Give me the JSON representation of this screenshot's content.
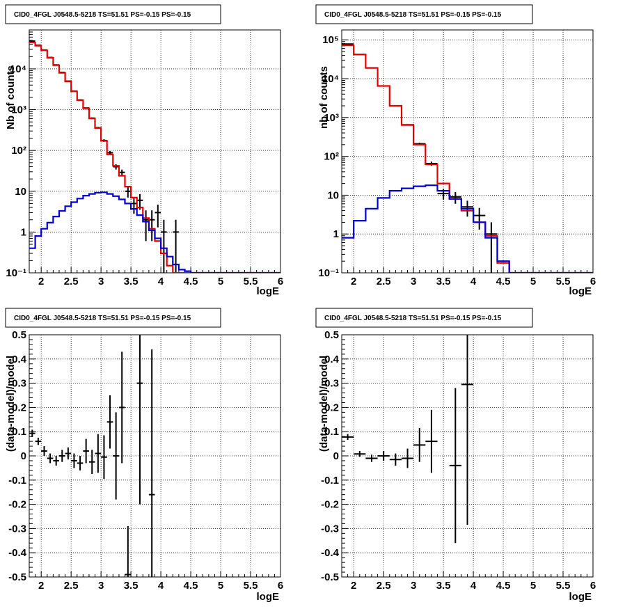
{
  "chart_data": [
    {
      "type": "histogram",
      "title": "CID0_4FGL J0548.5-5218 TS=51.51 PS=-0.15 PS=-0.15",
      "xlabel": "logE",
      "ylabel": "Nb of counts",
      "xlim": [
        1.8,
        6.0
      ],
      "ylim": [
        0.1,
        90000
      ],
      "yscale": "log",
      "grid": true,
      "bin_width": 0.1,
      "x_ticks": [
        "2",
        "2.5",
        "3",
        "3.5",
        "4",
        "4.5",
        "5",
        "5.5",
        "6"
      ],
      "y_ticks": [
        "10⁻¹",
        "1",
        "10",
        "10²",
        "10³",
        "10⁴"
      ],
      "series": [
        {
          "kind": "data",
          "color": "#000000",
          "points": [
            {
              "x": 1.85,
              "y": 48000,
              "err": 220
            },
            {
              "x": 1.95,
              "y": 38000,
              "err": 200
            },
            {
              "x": 2.05,
              "y": 29000,
              "err": 170
            },
            {
              "x": 2.15,
              "y": 19000,
              "err": 140
            },
            {
              "x": 2.25,
              "y": 12500,
              "err": 110
            },
            {
              "x": 2.35,
              "y": 8200,
              "err": 90
            },
            {
              "x": 2.45,
              "y": 5000,
              "err": 70
            },
            {
              "x": 2.55,
              "y": 2850,
              "err": 53
            },
            {
              "x": 2.65,
              "y": 1730,
              "err": 42
            },
            {
              "x": 2.75,
              "y": 1100,
              "err": 33
            },
            {
              "x": 2.85,
              "y": 620,
              "err": 25
            },
            {
              "x": 2.95,
              "y": 360,
              "err": 19
            },
            {
              "x": 3.05,
              "y": 175,
              "err": 13
            },
            {
              "x": 3.15,
              "y": 88,
              "err": 9
            },
            {
              "x": 3.25,
              "y": 40,
              "err": 6
            },
            {
              "x": 3.35,
              "y": 29,
              "err": 5
            },
            {
              "x": 3.45,
              "y": 10,
              "err": 3
            },
            {
              "x": 3.55,
              "y": 5,
              "err": 2.2
            },
            {
              "x": 3.65,
              "y": 6,
              "err": 2.5
            },
            {
              "x": 3.75,
              "y": 2,
              "err": 1.4
            },
            {
              "x": 3.85,
              "y": 2,
              "err": 1.4
            },
            {
              "x": 3.95,
              "y": 3,
              "err": 1.7
            },
            {
              "x": 4.05,
              "y": 1,
              "err": 1
            },
            {
              "x": 4.25,
              "y": 1,
              "err": 1
            }
          ]
        },
        {
          "kind": "total-model",
          "color": "#e00000",
          "values": [
            44000,
            37000,
            28500,
            18600,
            12300,
            8000,
            4900,
            2800,
            1700,
            1080,
            610,
            355,
            172,
            80,
            42,
            24,
            13,
            7,
            4,
            2.2,
            1.2,
            0.6,
            0.3,
            0.15,
            0.09,
            0.09,
            0.09,
            0.09,
            0.09,
            0.09,
            0.09,
            0.09,
            0.09,
            0.09,
            0.09,
            0.09,
            0.09,
            0.09,
            0.09,
            0.09,
            0.09,
            0.09
          ]
        },
        {
          "kind": "source-model",
          "color": "#0000d0",
          "values": [
            0.4,
            0.8,
            1.2,
            1.7,
            2.4,
            3.3,
            4.3,
            5.4,
            6.6,
            7.8,
            8.6,
            9.2,
            9.4,
            8.6,
            7.6,
            6.3,
            5.0,
            3.7,
            2.6,
            1.8,
            1.1,
            0.7,
            0.4,
            0.25,
            0.16,
            0.12,
            0.11,
            0.1,
            0.1,
            0.1,
            0.1,
            0.1,
            0.1,
            0.1,
            0.1,
            0.1,
            0.1,
            0.1,
            0.1,
            0.1,
            0.1,
            0.1
          ]
        }
      ]
    },
    {
      "type": "histogram",
      "title": "CID0_4FGL J0548.5-5218 TS=51.51 PS=-0.15 PS=-0.15",
      "xlabel": "logE",
      "ylabel": "nb of counts",
      "xlim": [
        1.8,
        6.0
      ],
      "ylim": [
        0.1,
        180000
      ],
      "yscale": "log",
      "grid": true,
      "bin_width": 0.2,
      "x_ticks": [
        "2",
        "2.5",
        "3",
        "3.5",
        "4",
        "4.5",
        "5",
        "5.5",
        "6"
      ],
      "y_ticks": [
        "10⁻¹",
        "1",
        "10",
        "10²",
        "10³",
        "10⁴",
        "10⁵"
      ],
      "series": [
        {
          "kind": "data",
          "color": "#000000",
          "points": [
            {
              "x": 1.9,
              "y": 78000,
              "err": 280
            },
            {
              "x": 2.1,
              "y": 42000,
              "err": 200
            },
            {
              "x": 2.3,
              "y": 19000,
              "err": 140
            },
            {
              "x": 2.5,
              "y": 6500,
              "err": 80
            },
            {
              "x": 2.7,
              "y": 2000,
              "err": 45
            },
            {
              "x": 2.9,
              "y": 650,
              "err": 25
            },
            {
              "x": 3.1,
              "y": 210,
              "err": 14
            },
            {
              "x": 3.3,
              "y": 65,
              "err": 8
            },
            {
              "x": 3.5,
              "y": 11,
              "err": 3.3
            },
            {
              "x": 3.7,
              "y": 9,
              "err": 3
            },
            {
              "x": 3.9,
              "y": 5,
              "err": 2.2
            },
            {
              "x": 4.1,
              "y": 3,
              "err": 1.7
            },
            {
              "x": 4.3,
              "y": 1,
              "err": 1
            }
          ]
        },
        {
          "kind": "total-model",
          "color": "#e00000",
          "values": [
            72000,
            42000,
            18800,
            6500,
            2000,
            640,
            200,
            62,
            20,
            8,
            4,
            2,
            0.9,
            0.18,
            0.09,
            0.09,
            0.09,
            0.09,
            0.09,
            0.09,
            0.09
          ]
        },
        {
          "kind": "source-model",
          "color": "#0000d0",
          "values": [
            0.8,
            2.2,
            4.5,
            8.5,
            13,
            15,
            17,
            18,
            13,
            8,
            4.5,
            2,
            0.8,
            0.2,
            0.1,
            0.1,
            0.1,
            0.1,
            0.1,
            0.1,
            0.1
          ]
        }
      ]
    },
    {
      "type": "scatter",
      "title": "CID0_4FGL J0548.5-5218 TS=51.51 PS=-0.15 PS=-0.15",
      "xlabel": "logE",
      "ylabel": "(data-model)/model",
      "xlim": [
        1.8,
        6.0
      ],
      "ylim": [
        -0.5,
        0.5
      ],
      "grid": true,
      "bin_width": 0.1,
      "x_ticks": [
        "2",
        "2.5",
        "3",
        "3.5",
        "4",
        "4.5",
        "5",
        "5.5",
        "6"
      ],
      "y_ticks": [
        "-0.5",
        "-0.4",
        "-0.3",
        "-0.2",
        "-0.1",
        "0",
        "0.1",
        "0.2",
        "0.3",
        "0.4",
        "0.5"
      ],
      "series": [
        {
          "kind": "residuals",
          "color": "#000000",
          "points": [
            {
              "x": 1.85,
              "y": 0.093,
              "err": 0.015
            },
            {
              "x": 1.95,
              "y": 0.06,
              "err": 0.015
            },
            {
              "x": 2.05,
              "y": 0.02,
              "err": 0.02
            },
            {
              "x": 2.15,
              "y": -0.01,
              "err": 0.02
            },
            {
              "x": 2.25,
              "y": -0.02,
              "err": 0.02
            },
            {
              "x": 2.35,
              "y": 0.0,
              "err": 0.025
            },
            {
              "x": 2.45,
              "y": 0.01,
              "err": 0.025
            },
            {
              "x": 2.55,
              "y": -0.02,
              "err": 0.03
            },
            {
              "x": 2.65,
              "y": -0.03,
              "err": 0.03
            },
            {
              "x": 2.75,
              "y": 0.02,
              "err": 0.05
            },
            {
              "x": 2.85,
              "y": -0.025,
              "err": 0.05
            },
            {
              "x": 2.95,
              "y": 0.01,
              "err": 0.08
            },
            {
              "x": 3.05,
              "y": -0.005,
              "err": 0.09
            },
            {
              "x": 3.15,
              "y": 0.14,
              "err": 0.11
            },
            {
              "x": 3.25,
              "y": 0.0,
              "err": 0.18
            },
            {
              "x": 3.35,
              "y": 0.2,
              "err": 0.23
            },
            {
              "x": 3.45,
              "y": -0.49,
              "err": 0.2
            },
            {
              "x": 3.65,
              "y": 0.3,
              "err": 0.5
            },
            {
              "x": 3.85,
              "y": -0.16,
              "err": 0.6
            }
          ]
        }
      ]
    },
    {
      "type": "scatter",
      "title": "CID0_4FGL J0548.5-5218 TS=51.51 PS=-0.15 PS=-0.15",
      "xlabel": "logE",
      "ylabel": "(data-model)/model",
      "xlim": [
        1.8,
        6.0
      ],
      "ylim": [
        -0.5,
        0.5
      ],
      "grid": true,
      "bin_width": 0.2,
      "x_ticks": [
        "2",
        "2.5",
        "3",
        "3.5",
        "4",
        "4.5",
        "5",
        "5.5",
        "6"
      ],
      "y_ticks": [
        "-0.5",
        "-0.4",
        "-0.3",
        "-0.2",
        "-0.1",
        "0",
        "0.1",
        "0.2",
        "0.3",
        "0.4",
        "0.5"
      ],
      "series": [
        {
          "kind": "residuals",
          "color": "#000000",
          "points": [
            {
              "x": 1.9,
              "y": 0.078,
              "err": 0.012
            },
            {
              "x": 2.1,
              "y": 0.008,
              "err": 0.012
            },
            {
              "x": 2.3,
              "y": -0.01,
              "err": 0.015
            },
            {
              "x": 2.5,
              "y": 0.0,
              "err": 0.02
            },
            {
              "x": 2.7,
              "y": -0.015,
              "err": 0.025
            },
            {
              "x": 2.9,
              "y": -0.01,
              "err": 0.04
            },
            {
              "x": 3.1,
              "y": 0.045,
              "err": 0.07
            },
            {
              "x": 3.3,
              "y": 0.06,
              "err": 0.13
            },
            {
              "x": 3.7,
              "y": -0.04,
              "err": 0.32
            },
            {
              "x": 3.9,
              "y": 0.295,
              "err": 0.58
            }
          ]
        }
      ]
    }
  ]
}
